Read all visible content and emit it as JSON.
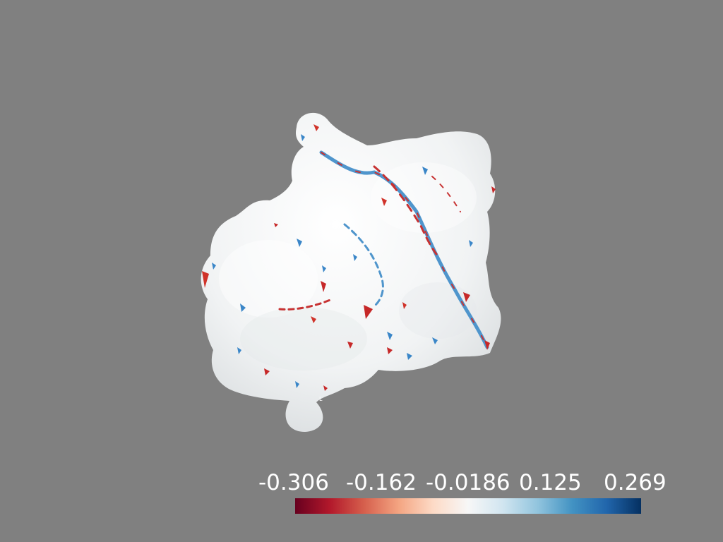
{
  "scene": {
    "background": "#808080",
    "object": "molecular-surface",
    "surface_base_color": "#f2f4f5",
    "object_label_glyph": "L"
  },
  "scalar_bar": {
    "colormap": "RdBu",
    "colors": [
      "#67001f",
      "#b2182b",
      "#d6604d",
      "#f4a582",
      "#fddbc7",
      "#f7f7f7",
      "#d1e5f0",
      "#92c5de",
      "#4393c3",
      "#2166ac",
      "#053061"
    ],
    "range": [
      -0.306,
      0.269
    ],
    "tick_labels": [
      "-0.306",
      "-0.162",
      "-0.0186",
      "0.125",
      "0.269"
    ]
  }
}
